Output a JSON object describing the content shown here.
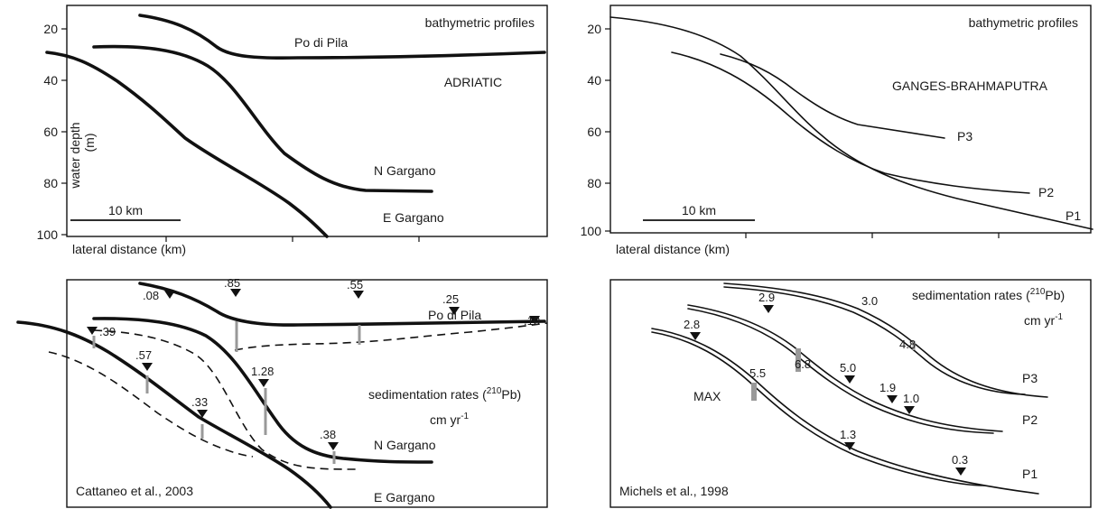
{
  "panels": {
    "adriatic": {
      "title": "bathymetric profiles",
      "region": "ADRIATIC",
      "ylabel": "water depth",
      "yunit": "(m)",
      "xlabel": "lateral distance (km)",
      "scale": "10 km",
      "yticks": [
        "20",
        "40",
        "60",
        "80",
        "100"
      ],
      "profiles": [
        "Po di Pila",
        "N Gargano",
        "E Gargano"
      ]
    },
    "ganges": {
      "title": "bathymetric profiles",
      "region": "GANGES-BRAHMAPUTRA",
      "xlabel": "lateral distance (km)",
      "scale": "10 km",
      "yticks": [
        "20",
        "40",
        "60",
        "80",
        "100"
      ],
      "profiles": [
        "P3",
        "P2",
        "P1"
      ]
    },
    "cattaneo": {
      "rates_pre": "sedimentation rates (",
      "rates_sup": "210",
      "rates_post": "Pb)",
      "units_pre": "cm yr",
      "units_sup": "-1",
      "source": "Cattaneo et al., 2003",
      "profiles": [
        "Po di Pila",
        "N Gargano",
        "E Gargano"
      ],
      "rates": [
        ".08",
        ".85",
        ".55",
        ".25",
        ".10",
        ".39",
        ".57",
        "1.28",
        ".33",
        ".38"
      ]
    },
    "michels": {
      "rates_pre": "sedimentation rates (",
      "rates_sup": "210",
      "rates_post": "Pb)",
      "units_pre": "cm yr",
      "units_sup": "-1",
      "source": "Michels et al., 1998",
      "max_label": "MAX",
      "profiles": [
        "P3",
        "P2",
        "P1"
      ],
      "rates": [
        "2.9",
        "3.0",
        "4.8",
        "2.8",
        "6.8",
        "5.0",
        "1.9",
        "1.0",
        "5.5",
        "1.3",
        "0.3"
      ]
    }
  }
}
